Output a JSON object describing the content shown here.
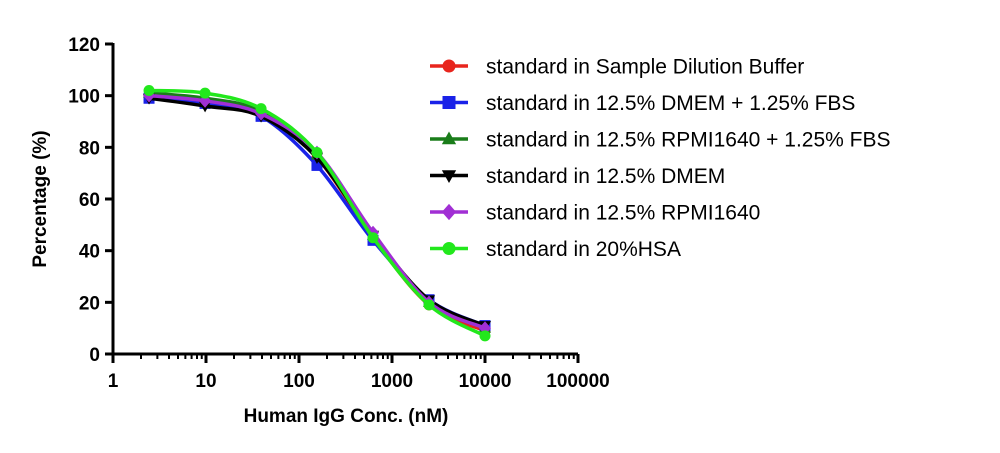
{
  "chart_data": {
    "type": "line",
    "title": "",
    "xlabel": "Human IgG Conc. (nM)",
    "ylabel": "Percentage (%)",
    "xscale": "log",
    "xlim": [
      1,
      100000
    ],
    "ylim": [
      0,
      120
    ],
    "x_ticks": [
      1,
      10,
      100,
      1000,
      10000,
      100000
    ],
    "x_tick_labels": [
      "1",
      "10",
      "100",
      "1000",
      "10000",
      "100000"
    ],
    "y_ticks": [
      0,
      20,
      40,
      60,
      80,
      100,
      120
    ],
    "y_tick_labels": [
      "0",
      "20",
      "40",
      "60",
      "80",
      "100",
      "120"
    ],
    "grid": false,
    "legend_position": "right",
    "x": [
      2.44,
      9.77,
      39.1,
      156,
      625,
      2500,
      10000
    ],
    "series": [
      {
        "name": "standard in Sample Dilution Buffer",
        "color": "#e8251d",
        "marker": "circle",
        "values": [
          100,
          98,
          93,
          76,
          45,
          19,
          9
        ]
      },
      {
        "name": "standard in 12.5% DMEM + 1.25% FBS",
        "color": "#1a22e8",
        "marker": "square",
        "values": [
          99,
          97,
          92,
          73,
          44,
          21,
          11
        ]
      },
      {
        "name": "standard in 12.5% RPMI1640 + 1.25% FBS",
        "color": "#1a7d1a",
        "marker": "triangle-up",
        "values": [
          101,
          99,
          94,
          77,
          46,
          20,
          10
        ]
      },
      {
        "name": "standard in 12.5% DMEM",
        "color": "#000000",
        "marker": "triangle-down",
        "values": [
          99,
          96,
          92,
          76,
          46,
          21,
          11
        ]
      },
      {
        "name": "standard in 12.5% RPMI1640",
        "color": "#a12fd4",
        "marker": "diamond",
        "values": [
          100,
          98,
          93,
          78,
          47,
          20,
          10
        ]
      },
      {
        "name": "standard in 20%HSA",
        "color": "#22e81c",
        "marker": "circle",
        "values": [
          102,
          101,
          95,
          78,
          45,
          19,
          7
        ]
      }
    ]
  }
}
